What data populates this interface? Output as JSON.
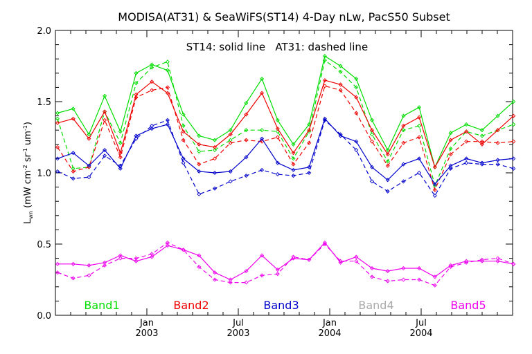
{
  "chart_data": {
    "type": "line",
    "title": "MODISA(AT31) & SeaWiFS(ST14) 4-Day nLw, PacS50 Subset",
    "annotation": "ST14: solid line   AT31: dashed line",
    "ylabel": "L_wn (mW cm^-2 sr^-1 um^-1)",
    "ylim": [
      0.0,
      2.0
    ],
    "y_ticks": [
      "0.0",
      "0.5",
      "1.0",
      "1.5",
      "2.0"
    ],
    "x_ticks": [
      {
        "month": "Jan",
        "year": "2003"
      },
      {
        "month": "Jul",
        "year": "2003"
      },
      {
        "month": "Jan",
        "year": "2004"
      },
      {
        "month": "Jul",
        "year": "2004"
      }
    ],
    "x_range_months": [
      "2002-07",
      "2004-12"
    ],
    "grid": false,
    "legend_position": "bottom",
    "line_styles": {
      "ST14": "solid",
      "AT31": "dashed"
    },
    "series": [
      {
        "name": "Band1",
        "color": "#00dd00",
        "x": [
          0,
          1,
          2,
          3,
          4,
          5,
          6,
          7,
          8,
          9,
          10,
          11,
          12,
          13,
          14,
          15,
          16,
          17,
          18,
          19,
          20,
          21,
          22,
          23,
          24,
          25,
          26,
          27,
          28,
          29
        ],
        "st14": [
          1.42,
          1.45,
          1.27,
          1.54,
          1.29,
          1.7,
          1.76,
          1.72,
          1.41,
          1.26,
          1.23,
          1.3,
          1.49,
          1.66,
          1.37,
          1.2,
          1.34,
          1.82,
          1.75,
          1.66,
          1.37,
          1.16,
          1.4,
          1.46,
          1.04,
          1.28,
          1.34,
          1.3,
          1.4,
          1.5
        ],
        "at31": [
          1.38,
          1.03,
          1.04,
          1.43,
          1.21,
          1.63,
          1.74,
          1.78,
          1.33,
          1.15,
          1.16,
          1.23,
          1.3,
          1.3,
          1.29,
          1.1,
          1.29,
          1.79,
          1.71,
          1.6,
          1.27,
          1.08,
          1.3,
          1.33,
          0.91,
          1.17,
          1.29,
          1.26,
          1.3,
          1.34
        ]
      },
      {
        "name": "Band2",
        "color": "#ee0000",
        "x": [
          0,
          1,
          2,
          3,
          4,
          5,
          6,
          7,
          8,
          9,
          10,
          11,
          12,
          13,
          14,
          15,
          16,
          17,
          18,
          19,
          20,
          21,
          22,
          23,
          24,
          25,
          26,
          27,
          28,
          29
        ],
        "st14": [
          1.35,
          1.38,
          1.24,
          1.43,
          1.14,
          1.55,
          1.64,
          1.56,
          1.29,
          1.2,
          1.18,
          1.27,
          1.41,
          1.56,
          1.31,
          1.14,
          1.3,
          1.65,
          1.62,
          1.53,
          1.3,
          1.13,
          1.33,
          1.39,
          1.04,
          1.23,
          1.29,
          1.2,
          1.3,
          1.4
        ],
        "at31": [
          1.18,
          1.01,
          1.04,
          1.37,
          1.11,
          1.53,
          1.58,
          1.6,
          1.23,
          1.06,
          1.1,
          1.21,
          1.23,
          1.22,
          1.25,
          1.06,
          1.21,
          1.61,
          1.58,
          1.42,
          1.22,
          1.05,
          1.21,
          1.25,
          0.88,
          1.13,
          1.22,
          1.22,
          1.21,
          1.22
        ]
      },
      {
        "name": "Band3",
        "color": "#0000cc",
        "x": [
          0,
          1,
          2,
          3,
          4,
          5,
          6,
          7,
          8,
          9,
          10,
          11,
          12,
          13,
          14,
          15,
          16,
          17,
          18,
          19,
          20,
          21,
          22,
          23,
          24,
          25,
          26,
          27,
          28,
          29
        ],
        "st14": [
          1.1,
          1.14,
          1.05,
          1.16,
          1.03,
          1.26,
          1.31,
          1.34,
          1.1,
          1.01,
          1.0,
          1.01,
          1.11,
          1.24,
          1.07,
          1.02,
          1.04,
          1.38,
          1.26,
          1.22,
          1.04,
          0.95,
          1.06,
          1.1,
          0.92,
          1.05,
          1.1,
          1.07,
          1.09,
          1.1
        ],
        "at31": [
          1.01,
          0.96,
          0.97,
          1.12,
          1.05,
          1.24,
          1.33,
          1.37,
          1.07,
          0.85,
          0.89,
          0.94,
          0.98,
          1.02,
          0.99,
          0.98,
          1.0,
          1.37,
          1.27,
          1.16,
          0.94,
          0.87,
          0.94,
          1.0,
          0.84,
          1.03,
          1.07,
          1.06,
          1.06,
          1.03
        ]
      },
      {
        "name": "Band4",
        "color": "#aaaaaa",
        "x": [],
        "st14": [],
        "at31": []
      },
      {
        "name": "Band5",
        "color": "#ee00ee",
        "x": [
          0,
          1,
          2,
          3,
          4,
          5,
          6,
          7,
          8,
          9,
          10,
          11,
          12,
          13,
          14,
          15,
          16,
          17,
          18,
          19,
          20,
          21,
          22,
          23,
          24,
          25,
          26,
          27,
          28,
          29
        ],
        "st14": [
          0.36,
          0.36,
          0.35,
          0.37,
          0.42,
          0.38,
          0.41,
          0.49,
          0.46,
          0.42,
          0.3,
          0.25,
          0.31,
          0.42,
          0.32,
          0.4,
          0.39,
          0.51,
          0.37,
          0.41,
          0.33,
          0.31,
          0.33,
          0.33,
          0.27,
          0.35,
          0.38,
          0.38,
          0.38,
          0.36
        ],
        "at31": [
          0.3,
          0.26,
          0.28,
          0.35,
          0.4,
          0.4,
          0.43,
          0.51,
          0.46,
          0.34,
          0.25,
          0.23,
          0.23,
          0.28,
          0.29,
          0.41,
          0.39,
          0.5,
          0.38,
          0.38,
          0.27,
          0.24,
          0.25,
          0.25,
          0.21,
          0.34,
          0.37,
          0.39,
          0.4,
          0.36
        ]
      }
    ]
  }
}
